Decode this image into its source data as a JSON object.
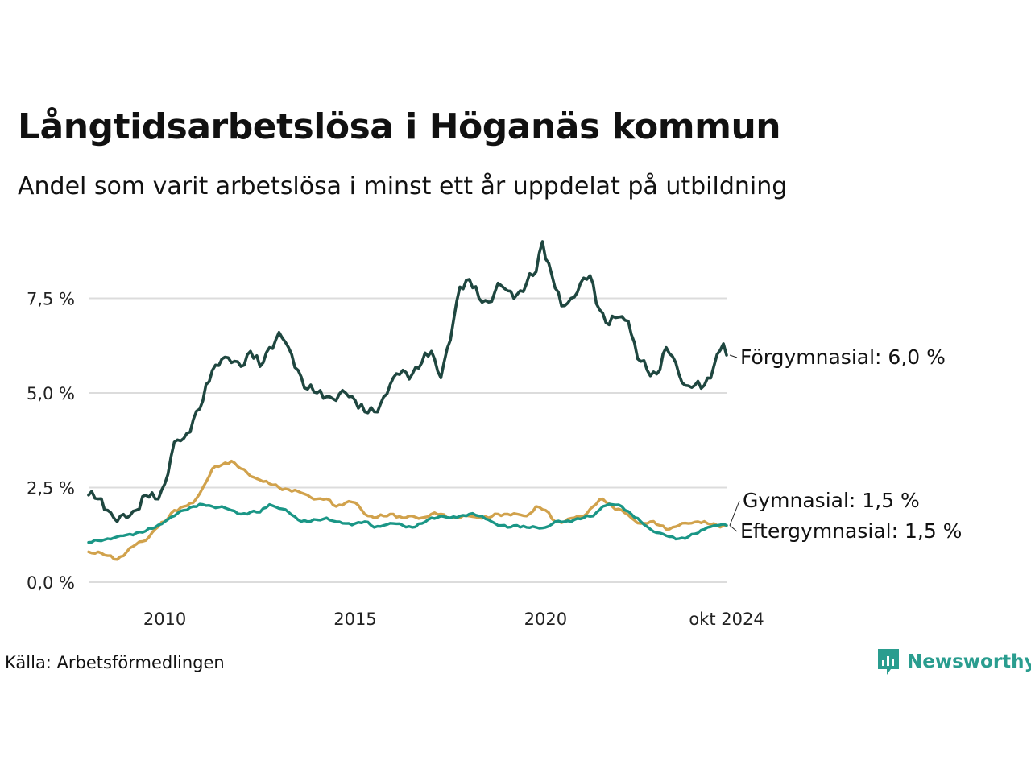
{
  "title": "Långtidsarbetslösa i Höganäs kommun",
  "subtitle": "Andel som varit arbetslösa i minst ett år uppdelat på utbildning",
  "source": "Källa: Arbetsförmedlingen",
  "brand": "Newsworthy",
  "colors": {
    "forgymnasial": "#1f4740",
    "gymnasial": "#d1a24c",
    "eftergymnasial": "#1a9686",
    "grid": "#dcdcdc",
    "brand": "#2a9d8f"
  },
  "chart_data": {
    "type": "line",
    "x_start": "2008-01",
    "x_end": "2024-10",
    "x_step": "month",
    "ylim": [
      0,
      9.5
    ],
    "grid": true,
    "y_ticks": [
      {
        "value": 0.0,
        "label": "0,0 %"
      },
      {
        "value": 2.5,
        "label": "2,5 %"
      },
      {
        "value": 5.0,
        "label": "5,0 %"
      },
      {
        "value": 7.5,
        "label": "7,5 %"
      }
    ],
    "x_ticks": [
      {
        "date": "2010-01",
        "label": "2010"
      },
      {
        "date": "2015-01",
        "label": "2015"
      },
      {
        "date": "2020-01",
        "label": "2020"
      },
      {
        "date": "2024-10",
        "label": "okt 2024"
      }
    ],
    "series": [
      {
        "name": "Förgymnasial",
        "end_label": "Förgymnasial: 6,0 %",
        "color_key": "forgymnasial",
        "anchors": [
          [
            "2008-01",
            2.3
          ],
          [
            "2008-04",
            2.2
          ],
          [
            "2008-07",
            1.9
          ],
          [
            "2008-10",
            1.6
          ],
          [
            "2009-01",
            1.7
          ],
          [
            "2009-04",
            1.9
          ],
          [
            "2009-07",
            2.3
          ],
          [
            "2009-10",
            2.2
          ],
          [
            "2010-01",
            2.6
          ],
          [
            "2010-04",
            3.7
          ],
          [
            "2010-07",
            3.8
          ],
          [
            "2010-10",
            4.3
          ],
          [
            "2011-01",
            4.8
          ],
          [
            "2011-04",
            5.6
          ],
          [
            "2011-07",
            5.9
          ],
          [
            "2011-10",
            5.8
          ],
          [
            "2012-01",
            5.7
          ],
          [
            "2012-04",
            6.1
          ],
          [
            "2012-07",
            5.7
          ],
          [
            "2012-10",
            6.2
          ],
          [
            "2013-01",
            6.6
          ],
          [
            "2013-04",
            6.2
          ],
          [
            "2013-07",
            5.6
          ],
          [
            "2013-10",
            5.1
          ],
          [
            "2014-01",
            5.0
          ],
          [
            "2014-04",
            4.9
          ],
          [
            "2014-07",
            4.8
          ],
          [
            "2014-10",
            5.0
          ],
          [
            "2015-01",
            4.8
          ],
          [
            "2015-04",
            4.5
          ],
          [
            "2015-07",
            4.5
          ],
          [
            "2015-10",
            4.9
          ],
          [
            "2016-01",
            5.4
          ],
          [
            "2016-04",
            5.6
          ],
          [
            "2016-07",
            5.5
          ],
          [
            "2016-10",
            5.8
          ],
          [
            "2017-01",
            6.1
          ],
          [
            "2017-04",
            5.4
          ],
          [
            "2017-07",
            6.4
          ],
          [
            "2017-10",
            7.8
          ],
          [
            "2018-01",
            8.0
          ],
          [
            "2018-04",
            7.5
          ],
          [
            "2018-07",
            7.4
          ],
          [
            "2018-10",
            7.9
          ],
          [
            "2019-01",
            7.7
          ],
          [
            "2019-04",
            7.6
          ],
          [
            "2019-07",
            7.9
          ],
          [
            "2019-10",
            8.2
          ],
          [
            "2019-12",
            9.0
          ],
          [
            "2020-03",
            8.1
          ],
          [
            "2020-06",
            7.3
          ],
          [
            "2020-09",
            7.5
          ],
          [
            "2020-12",
            7.9
          ],
          [
            "2021-03",
            8.1
          ],
          [
            "2021-06",
            7.2
          ],
          [
            "2021-09",
            6.8
          ],
          [
            "2021-12",
            7.0
          ],
          [
            "2022-03",
            6.9
          ],
          [
            "2022-06",
            5.9
          ],
          [
            "2022-09",
            5.6
          ],
          [
            "2022-12",
            5.5
          ],
          [
            "2023-03",
            6.2
          ],
          [
            "2023-06",
            5.8
          ],
          [
            "2023-09",
            5.2
          ],
          [
            "2023-12",
            5.2
          ],
          [
            "2024-03",
            5.2
          ],
          [
            "2024-06",
            5.7
          ],
          [
            "2024-09",
            6.3
          ],
          [
            "2024-10",
            6.0
          ]
        ]
      },
      {
        "name": "Gymnasial",
        "end_label": "Gymnasial: 1,5 %",
        "color_key": "gymnasial",
        "anchors": [
          [
            "2008-01",
            0.8
          ],
          [
            "2008-04",
            0.8
          ],
          [
            "2008-07",
            0.7
          ],
          [
            "2008-10",
            0.6
          ],
          [
            "2009-01",
            0.8
          ],
          [
            "2009-04",
            1.0
          ],
          [
            "2009-07",
            1.1
          ],
          [
            "2009-10",
            1.4
          ],
          [
            "2010-01",
            1.6
          ],
          [
            "2010-04",
            1.9
          ],
          [
            "2010-07",
            2.0
          ],
          [
            "2010-10",
            2.1
          ],
          [
            "2011-01",
            2.5
          ],
          [
            "2011-04",
            3.0
          ],
          [
            "2011-07",
            3.1
          ],
          [
            "2011-10",
            3.2
          ],
          [
            "2012-01",
            3.0
          ],
          [
            "2012-04",
            2.8
          ],
          [
            "2012-07",
            2.7
          ],
          [
            "2012-10",
            2.6
          ],
          [
            "2013-01",
            2.5
          ],
          [
            "2013-04",
            2.45
          ],
          [
            "2013-07",
            2.4
          ],
          [
            "2013-10",
            2.3
          ],
          [
            "2014-01",
            2.2
          ],
          [
            "2014-04",
            2.2
          ],
          [
            "2014-07",
            2.0
          ],
          [
            "2014-10",
            2.1
          ],
          [
            "2015-01",
            2.1
          ],
          [
            "2015-04",
            1.8
          ],
          [
            "2015-07",
            1.7
          ],
          [
            "2015-10",
            1.75
          ],
          [
            "2016-01",
            1.8
          ],
          [
            "2016-04",
            1.7
          ],
          [
            "2016-07",
            1.75
          ],
          [
            "2016-10",
            1.7
          ],
          [
            "2017-01",
            1.8
          ],
          [
            "2017-04",
            1.8
          ],
          [
            "2017-07",
            1.7
          ],
          [
            "2017-10",
            1.7
          ],
          [
            "2018-01",
            1.75
          ],
          [
            "2018-04",
            1.7
          ],
          [
            "2018-07",
            1.7
          ],
          [
            "2018-10",
            1.8
          ],
          [
            "2019-01",
            1.8
          ],
          [
            "2019-04",
            1.8
          ],
          [
            "2019-07",
            1.75
          ],
          [
            "2019-10",
            2.0
          ],
          [
            "2020-01",
            1.9
          ],
          [
            "2020-04",
            1.6
          ],
          [
            "2020-07",
            1.6
          ],
          [
            "2020-10",
            1.7
          ],
          [
            "2021-01",
            1.75
          ],
          [
            "2021-04",
            2.0
          ],
          [
            "2021-07",
            2.2
          ],
          [
            "2021-10",
            2.0
          ],
          [
            "2022-01",
            1.9
          ],
          [
            "2022-04",
            1.7
          ],
          [
            "2022-07",
            1.55
          ],
          [
            "2022-10",
            1.6
          ],
          [
            "2023-01",
            1.5
          ],
          [
            "2023-04",
            1.4
          ],
          [
            "2023-07",
            1.5
          ],
          [
            "2023-10",
            1.55
          ],
          [
            "2024-01",
            1.6
          ],
          [
            "2024-04",
            1.55
          ],
          [
            "2024-07",
            1.5
          ],
          [
            "2024-10",
            1.5
          ]
        ]
      },
      {
        "name": "Eftergymnasial",
        "end_label": "Eftergymnasial: 1,5 %",
        "color_key": "eftergymnasial",
        "anchors": [
          [
            "2008-01",
            1.05
          ],
          [
            "2008-04",
            1.1
          ],
          [
            "2008-07",
            1.15
          ],
          [
            "2008-10",
            1.2
          ],
          [
            "2009-01",
            1.25
          ],
          [
            "2009-04",
            1.3
          ],
          [
            "2009-07",
            1.35
          ],
          [
            "2009-10",
            1.45
          ],
          [
            "2010-01",
            1.6
          ],
          [
            "2010-04",
            1.75
          ],
          [
            "2010-07",
            1.9
          ],
          [
            "2010-10",
            2.0
          ],
          [
            "2011-01",
            2.05
          ],
          [
            "2011-04",
            2.0
          ],
          [
            "2011-07",
            2.0
          ],
          [
            "2011-10",
            1.9
          ],
          [
            "2012-01",
            1.8
          ],
          [
            "2012-04",
            1.85
          ],
          [
            "2012-07",
            1.85
          ],
          [
            "2012-10",
            2.05
          ],
          [
            "2013-01",
            1.95
          ],
          [
            "2013-04",
            1.85
          ],
          [
            "2013-07",
            1.65
          ],
          [
            "2013-10",
            1.6
          ],
          [
            "2014-01",
            1.65
          ],
          [
            "2014-04",
            1.7
          ],
          [
            "2014-07",
            1.6
          ],
          [
            "2014-10",
            1.55
          ],
          [
            "2015-01",
            1.55
          ],
          [
            "2015-04",
            1.6
          ],
          [
            "2015-07",
            1.45
          ],
          [
            "2015-10",
            1.5
          ],
          [
            "2016-01",
            1.55
          ],
          [
            "2016-04",
            1.5
          ],
          [
            "2016-07",
            1.45
          ],
          [
            "2016-10",
            1.55
          ],
          [
            "2017-01",
            1.7
          ],
          [
            "2017-04",
            1.75
          ],
          [
            "2017-07",
            1.7
          ],
          [
            "2017-10",
            1.75
          ],
          [
            "2018-01",
            1.8
          ],
          [
            "2018-04",
            1.75
          ],
          [
            "2018-07",
            1.65
          ],
          [
            "2018-10",
            1.5
          ],
          [
            "2019-01",
            1.45
          ],
          [
            "2019-04",
            1.5
          ],
          [
            "2019-07",
            1.45
          ],
          [
            "2019-10",
            1.45
          ],
          [
            "2020-01",
            1.45
          ],
          [
            "2020-04",
            1.6
          ],
          [
            "2020-07",
            1.6
          ],
          [
            "2020-10",
            1.65
          ],
          [
            "2021-01",
            1.7
          ],
          [
            "2021-04",
            1.75
          ],
          [
            "2021-07",
            2.0
          ],
          [
            "2021-10",
            2.05
          ],
          [
            "2022-01",
            2.0
          ],
          [
            "2022-04",
            1.8
          ],
          [
            "2022-07",
            1.6
          ],
          [
            "2022-10",
            1.4
          ],
          [
            "2023-01",
            1.3
          ],
          [
            "2023-04",
            1.2
          ],
          [
            "2023-07",
            1.15
          ],
          [
            "2023-10",
            1.2
          ],
          [
            "2024-01",
            1.3
          ],
          [
            "2024-04",
            1.45
          ],
          [
            "2024-07",
            1.5
          ],
          [
            "2024-10",
            1.5
          ]
        ]
      }
    ]
  }
}
